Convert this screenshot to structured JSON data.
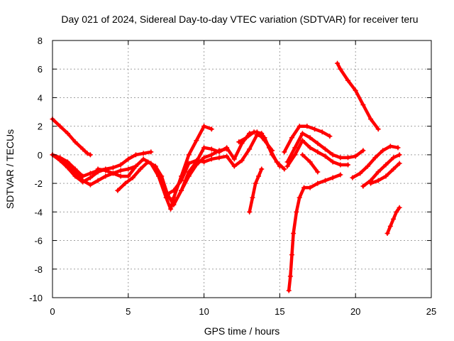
{
  "chart_data": {
    "type": "scatter",
    "title": "Day 021 of 2024, Sidereal Day-to-day VTEC variation (SDTVAR) for receiver teru",
    "xlabel": "GPS time / hours",
    "ylabel": "SDTVAR / TECUs",
    "xlim": [
      0,
      25
    ],
    "ylim": [
      -10,
      8
    ],
    "xticks": [
      0,
      5,
      10,
      15,
      20,
      25
    ],
    "yticks": [
      -10,
      -8,
      -6,
      -4,
      -2,
      0,
      2,
      4,
      6,
      8
    ],
    "grid": true,
    "marker": "+",
    "color": "#ff0000",
    "series": [
      {
        "x": [
          0,
          0.5,
          1,
          1.5,
          2,
          2.3,
          2.5
        ],
        "y": [
          2.5,
          2.0,
          1.5,
          0.9,
          0.4,
          0.1,
          0.0
        ]
      },
      {
        "x": [
          0,
          0.5,
          1,
          1.5,
          2,
          2.5,
          3,
          3.5,
          4,
          4.5,
          5,
          5.5,
          6,
          6.5
        ],
        "y": [
          0,
          -0.2,
          -0.5,
          -1.0,
          -1.5,
          -1.3,
          -1.1,
          -1.0,
          -0.9,
          -0.7,
          -0.3,
          0.0,
          0.1,
          0.2
        ]
      },
      {
        "x": [
          0,
          0.5,
          1,
          1.5,
          2,
          2.5,
          3,
          3.5
        ],
        "y": [
          0,
          -0.4,
          -0.9,
          -1.5,
          -1.9,
          -1.6,
          -1.2,
          -1.0
        ]
      },
      {
        "x": [
          0.5,
          1,
          1.5,
          2,
          2.5,
          3,
          3.5,
          4,
          4.5,
          5,
          5.5
        ],
        "y": [
          -0.3,
          -0.7,
          -1.2,
          -1.8,
          -2.1,
          -1.8,
          -1.5,
          -1.3,
          -1.1,
          -1.0,
          -0.8
        ]
      },
      {
        "x": [
          3,
          3.5,
          4,
          4.5,
          5,
          5.5,
          6,
          6.5,
          7,
          7.5,
          7.8,
          8,
          8.5,
          9,
          9.5,
          10,
          10.5
        ],
        "y": [
          -1.0,
          -1.1,
          -1.3,
          -1.5,
          -1.5,
          -0.8,
          -0.3,
          -0.6,
          -1.5,
          -3.0,
          -3.8,
          -3.0,
          -1.5,
          0.0,
          1.0,
          2.0,
          1.8
        ]
      },
      {
        "x": [
          4.3,
          4.8,
          5.3,
          5.8,
          6.3,
          6.8,
          7.2,
          7.6,
          8,
          8.5,
          9,
          9.5,
          10,
          10.5,
          11,
          11.5
        ],
        "y": [
          -2.5,
          -2.0,
          -1.6,
          -1.0,
          -0.5,
          -0.8,
          -1.5,
          -2.8,
          -3.5,
          -2.5,
          -1.5,
          -0.7,
          -0.2,
          0.0,
          0.3,
          0.4
        ]
      },
      {
        "x": [
          7.5,
          8,
          8.5,
          9,
          9.5,
          10,
          10.5,
          11,
          11.5,
          12,
          12.5,
          13,
          13.5,
          14,
          14.5,
          15
        ],
        "y": [
          -2.8,
          -2.5,
          -1.8,
          -0.6,
          -0.4,
          -0.5,
          -0.3,
          -0.2,
          -0.1,
          -0.8,
          -0.4,
          0.4,
          1.4,
          1.2,
          0.0,
          -0.8
        ]
      },
      {
        "x": [
          8.5,
          9,
          9.5,
          10,
          10.5,
          11,
          11.5,
          12,
          12.5,
          13,
          13.5,
          14,
          14.5
        ],
        "y": [
          -2.5,
          -1.2,
          -0.5,
          0.5,
          0.4,
          0.2,
          0.5,
          -0.3,
          0.8,
          1.5,
          1.6,
          1.0,
          0.3
        ]
      },
      {
        "x": [
          12.3,
          12.8,
          13.3,
          13.8,
          14.3,
          14.8,
          15.3
        ],
        "y": [
          0.9,
          1.2,
          1.6,
          1.5,
          0.5,
          -0.5,
          -1.0
        ]
      },
      {
        "x": [
          13,
          13.2,
          13.4,
          13.6,
          13.8
        ],
        "y": [
          -4.0,
          -3.0,
          -2.0,
          -1.5,
          -1.0
        ]
      },
      {
        "x": [
          15.5,
          16,
          16.5,
          17,
          17.5,
          18,
          18.5,
          19,
          19.5,
          20,
          20.5
        ],
        "y": [
          -0.5,
          0.5,
          1.5,
          1.2,
          0.8,
          0.4,
          0.0,
          -0.2,
          -0.2,
          -0.1,
          0.3
        ]
      },
      {
        "x": [
          15.3,
          15.8,
          16.3,
          16.8,
          17.3,
          17.8,
          18.3
        ],
        "y": [
          0.2,
          1.2,
          2.0,
          2.0,
          1.8,
          1.6,
          1.3
        ]
      },
      {
        "x": [
          15.5,
          16,
          16.5,
          17,
          17.5,
          18,
          18.5,
          19,
          19.5
        ],
        "y": [
          -0.8,
          0.0,
          1.0,
          0.5,
          0.2,
          -0.1,
          -0.5,
          -0.7,
          -0.7
        ]
      },
      {
        "x": [
          16.5,
          17,
          17.5
        ],
        "y": [
          0.0,
          -0.5,
          -1.2
        ]
      },
      {
        "x": [
          15.6,
          15.7,
          15.8,
          15.9,
          16.1,
          16.3,
          16.6,
          17,
          17.5,
          18,
          18.5,
          19
        ],
        "y": [
          -9.5,
          -8.5,
          -7.0,
          -5.5,
          -4.0,
          -3.0,
          -2.3,
          -2.3,
          -2.0,
          -1.8,
          -1.6,
          -1.4
        ]
      },
      {
        "x": [
          18.8,
          19,
          19.5,
          20,
          20.5,
          21,
          21.5
        ],
        "y": [
          6.4,
          6.0,
          5.2,
          4.5,
          3.5,
          2.5,
          1.8
        ]
      },
      {
        "x": [
          19.8,
          20.3,
          20.8,
          21.3,
          21.8,
          22.3,
          22.8
        ],
        "y": [
          -1.6,
          -1.3,
          -0.8,
          -0.2,
          0.3,
          0.6,
          0.5
        ]
      },
      {
        "x": [
          20.5,
          21,
          21.5,
          22,
          22.5,
          22.9
        ],
        "y": [
          -2.2,
          -1.8,
          -1.2,
          -0.7,
          -0.2,
          0.0
        ]
      },
      {
        "x": [
          21,
          21.5,
          22,
          22.5,
          22.9
        ],
        "y": [
          -2.0,
          -1.8,
          -1.5,
          -1.0,
          -0.6
        ]
      },
      {
        "x": [
          22.1,
          22.3,
          22.5,
          22.7,
          22.9
        ],
        "y": [
          -5.5,
          -5.0,
          -4.5,
          -4.0,
          -3.7
        ]
      }
    ]
  }
}
